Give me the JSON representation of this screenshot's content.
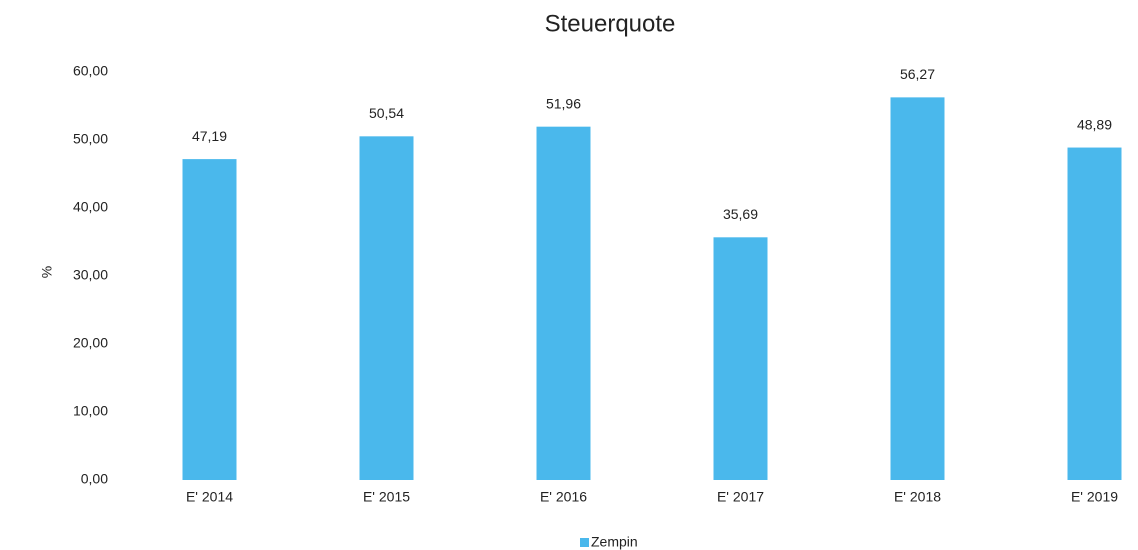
{
  "chart_data": {
    "type": "bar",
    "title": "Steuerquote",
    "y_label": "%",
    "categories": [
      "E' 2014",
      "E' 2015",
      "E' 2016",
      "E' 2017",
      "E' 2018",
      "E' 2019"
    ],
    "series": [
      {
        "name": "Zempin",
        "color": "#4ab8ec",
        "values": [
          47.19,
          50.54,
          51.96,
          35.69,
          56.27,
          48.89
        ],
        "value_labels": [
          "47,19",
          "50,54",
          "51,96",
          "35,69",
          "56,27",
          "48,89"
        ]
      }
    ],
    "ylim": [
      0,
      60
    ],
    "yticks": [
      {
        "value": 0,
        "label": "0,00"
      },
      {
        "value": 10,
        "label": "10,00"
      },
      {
        "value": 20,
        "label": "20,00"
      },
      {
        "value": 30,
        "label": "30,00"
      },
      {
        "value": 40,
        "label": "40,00"
      },
      {
        "value": 50,
        "label": "50,00"
      },
      {
        "value": 60,
        "label": "60,00"
      }
    ],
    "grid": false,
    "legend": "bottom"
  }
}
